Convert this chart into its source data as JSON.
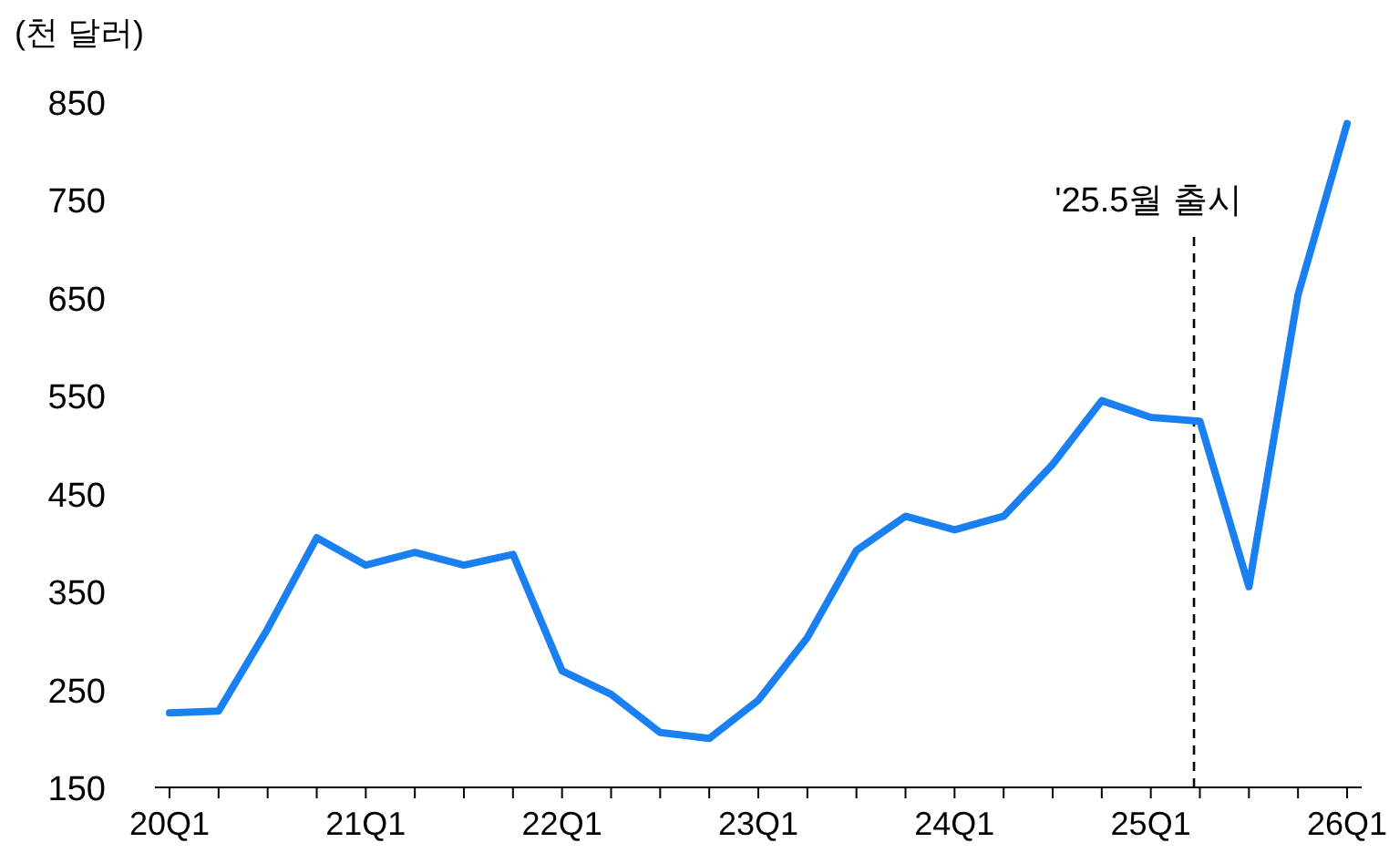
{
  "chart_data": {
    "type": "line",
    "ylabel": "(천 달러)",
    "categories": [
      "20Q1",
      null,
      null,
      null,
      "21Q1",
      null,
      null,
      null,
      "22Q1",
      null,
      null,
      null,
      "23Q1",
      null,
      null,
      null,
      "24Q1",
      null,
      null,
      null,
      "25Q1",
      null,
      null,
      null,
      "26Q1"
    ],
    "series": [
      {
        "color": "#1a7ff0",
        "values": [
          226,
          228,
          312,
          405,
          377,
          390,
          377,
          388,
          269,
          245,
          206,
          200,
          239,
          303,
          392,
          427,
          413,
          427,
          480,
          545,
          528,
          524,
          355,
          653,
          828
        ]
      }
    ],
    "ylim": [
      150,
      850
    ],
    "yticks": [
      150,
      250,
      350,
      450,
      550,
      650,
      750,
      850
    ],
    "annotations": [
      "'25.5월 출시"
    ]
  }
}
